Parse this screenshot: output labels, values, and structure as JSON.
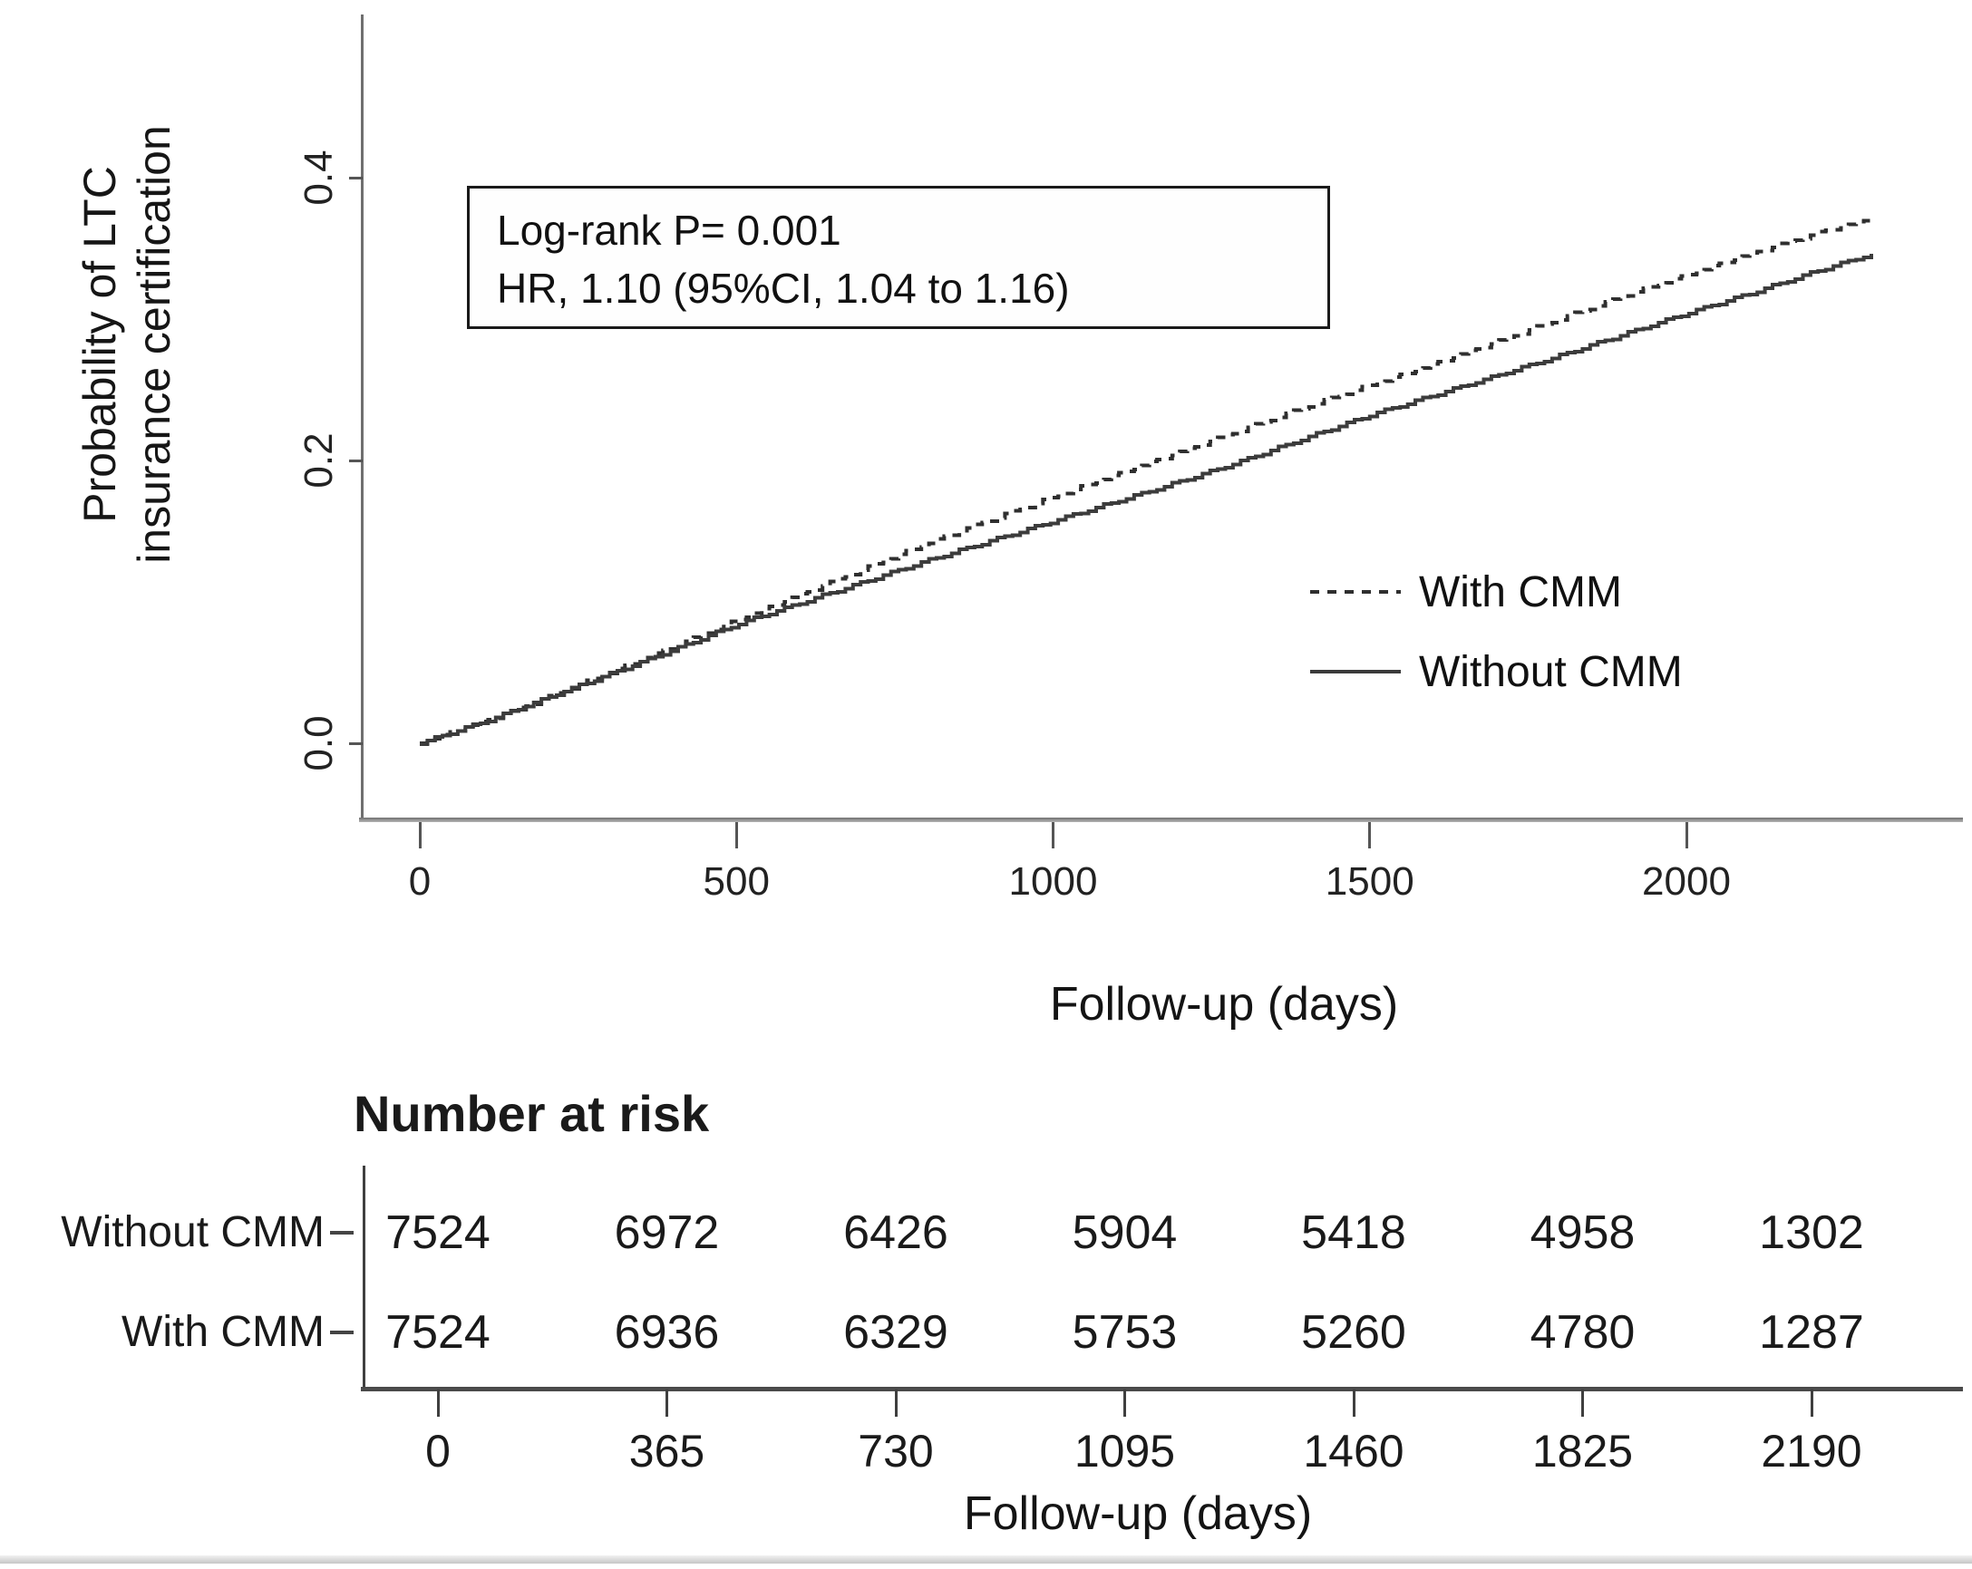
{
  "chart_data": {
    "type": "line",
    "title": "",
    "xlabel": "Follow-up (days)",
    "ylabel": "Probability of LTC insurance certification",
    "ylabel_lines": [
      "Probability of LTC",
      "insurance certification"
    ],
    "xlim": [
      0,
      2400
    ],
    "ylim": [
      0,
      0.52
    ],
    "x_ticks": [
      "0",
      "500",
      "1000",
      "1500",
      "2000"
    ],
    "y_ticks": [
      "0.0",
      "0.2",
      "0.4"
    ],
    "grid": "off",
    "legend_position": "right-middle",
    "annotation": {
      "line1": "Log-rank P= 0.001",
      "line2": "HR, 1.10 (95%CI, 1.04 to 1.16)"
    },
    "legend": [
      {
        "label": "With CMM",
        "style": "dashed"
      },
      {
        "label": "Without CMM",
        "style": "solid"
      }
    ],
    "series": [
      {
        "name": "With CMM",
        "style": "dashed",
        "points": [
          [
            0,
            0
          ],
          [
            100,
            0.015
          ],
          [
            200,
            0.032
          ],
          [
            300,
            0.05
          ],
          [
            400,
            0.068
          ],
          [
            500,
            0.087
          ],
          [
            600,
            0.105
          ],
          [
            700,
            0.123
          ],
          [
            800,
            0.141
          ],
          [
            900,
            0.158
          ],
          [
            1000,
            0.174
          ],
          [
            1100,
            0.19
          ],
          [
            1200,
            0.206
          ],
          [
            1300,
            0.222
          ],
          [
            1400,
            0.238
          ],
          [
            1500,
            0.253
          ],
          [
            1600,
            0.268
          ],
          [
            1700,
            0.284
          ],
          [
            1800,
            0.3
          ],
          [
            1900,
            0.316
          ],
          [
            2000,
            0.331
          ],
          [
            2100,
            0.346
          ],
          [
            2200,
            0.36
          ],
          [
            2300,
            0.372
          ]
        ]
      },
      {
        "name": "Without CMM",
        "style": "solid",
        "points": [
          [
            0,
            0
          ],
          [
            100,
            0.015
          ],
          [
            200,
            0.032
          ],
          [
            300,
            0.049
          ],
          [
            400,
            0.066
          ],
          [
            500,
            0.084
          ],
          [
            600,
            0.099
          ],
          [
            700,
            0.114
          ],
          [
            800,
            0.129
          ],
          [
            900,
            0.143
          ],
          [
            1000,
            0.157
          ],
          [
            1100,
            0.171
          ],
          [
            1200,
            0.185
          ],
          [
            1300,
            0.2
          ],
          [
            1400,
            0.216
          ],
          [
            1500,
            0.232
          ],
          [
            1600,
            0.246
          ],
          [
            1700,
            0.26
          ],
          [
            1800,
            0.274
          ],
          [
            1900,
            0.289
          ],
          [
            2000,
            0.304
          ],
          [
            2100,
            0.318
          ],
          [
            2200,
            0.333
          ],
          [
            2300,
            0.347
          ]
        ]
      }
    ]
  },
  "risk_table": {
    "header": "Number at risk",
    "xlabel": "Follow-up (days)",
    "x_ticks": [
      "0",
      "365",
      "730",
      "1095",
      "1460",
      "1825",
      "2190"
    ],
    "rows": [
      {
        "label": "Without CMM",
        "values": [
          "7524",
          "6972",
          "6426",
          "5904",
          "5418",
          "4958",
          "1302"
        ]
      },
      {
        "label": "With CMM",
        "values": [
          "7524",
          "6936",
          "6329",
          "5753",
          "5260",
          "4780",
          "1287"
        ]
      }
    ]
  }
}
